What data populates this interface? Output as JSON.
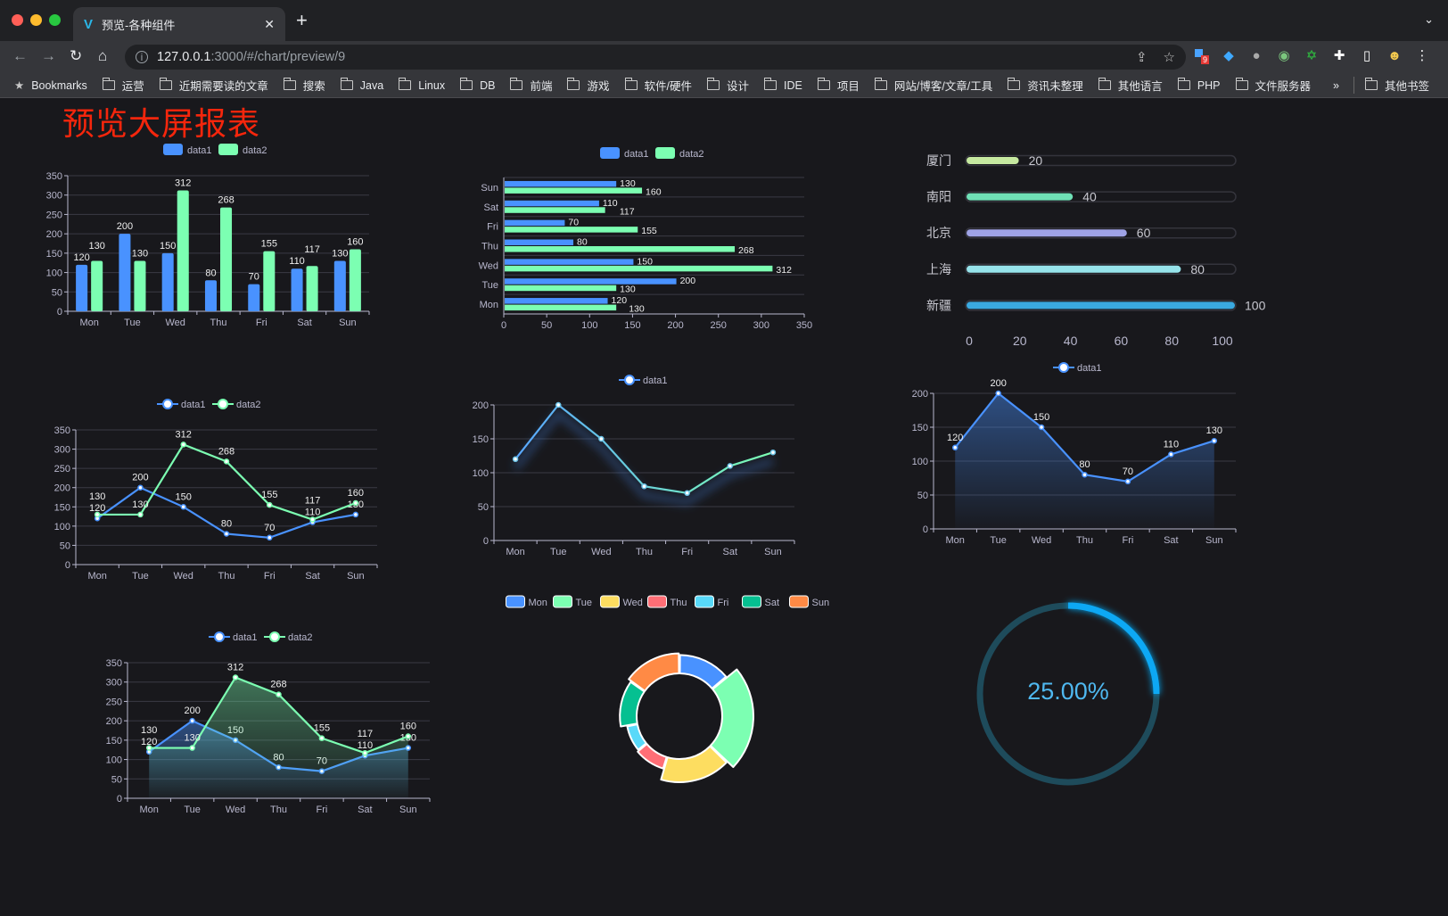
{
  "browser": {
    "tab_title": "预览-各种组件",
    "new_tab": "+",
    "url_host": "127.0.0.1",
    "url_rest": ":3000/#/chart/preview/9",
    "extension_badge": "9",
    "bookmarks": [
      "Bookmarks",
      "运营",
      "近期需要读的文章",
      "搜索",
      "Java",
      "Linux",
      "DB",
      "前端",
      "游戏",
      "软件/硬件",
      "设计",
      "IDE",
      "项目",
      "网站/博客/文章/工具",
      "资讯未整理",
      "其他语言",
      "PHP",
      "文件服务器"
    ],
    "bookmarks_overflow": "»",
    "other_bookmarks": "其他书签",
    "window_controls_colors": [
      "#ff5f57",
      "#febc2e",
      "#28c840"
    ]
  },
  "page": {
    "title": "预览大屏报表",
    "title_color": "#f5260c",
    "background": "#18181c"
  },
  "colors": {
    "data1": "#4992ff",
    "data2": "#7cffb2",
    "grid": "#3a3a44",
    "axis": "#b9b8ce"
  },
  "chart_data": [
    {
      "type": "bar",
      "categories": [
        "Mon",
        "Tue",
        "Wed",
        "Thu",
        "Fri",
        "Sat",
        "Sun"
      ],
      "series": [
        {
          "name": "data1",
          "values": [
            120,
            200,
            150,
            80,
            70,
            110,
            130
          ]
        },
        {
          "name": "data2",
          "values": [
            130,
            130,
            312,
            268,
            155,
            117,
            160
          ]
        }
      ],
      "yticks": [
        "0",
        "50",
        "100",
        "150",
        "200",
        "250",
        "300",
        "350"
      ],
      "ylim": [
        0,
        350
      ],
      "grid": true,
      "legend": "top",
      "data_labels": true
    },
    {
      "type": "bar",
      "orientation": "horizontal",
      "categories": [
        "Mon",
        "Tue",
        "Wed",
        "Thu",
        "Fri",
        "Sat",
        "Sun"
      ],
      "series": [
        {
          "name": "data1",
          "values": [
            120,
            200,
            150,
            80,
            70,
            110,
            130
          ]
        },
        {
          "name": "data2",
          "values": [
            130,
            130,
            312,
            268,
            155,
            117,
            160
          ]
        }
      ],
      "xticks": [
        "0",
        "50",
        "100",
        "150",
        "200",
        "250",
        "300",
        "350"
      ],
      "xlim": [
        0,
        350
      ],
      "grid": true,
      "legend": "top",
      "data_labels": true
    },
    {
      "type": "bar",
      "orientation": "horizontal",
      "style": "progress",
      "categories": [
        "厦门",
        "南阳",
        "北京",
        "上海",
        "新疆"
      ],
      "values": [
        20,
        40,
        60,
        80,
        100
      ],
      "colors": [
        "#c6e9a0",
        "#6fe0b6",
        "#9fa3e6",
        "#96e3ea",
        "#3aa9e0"
      ],
      "xticks": [
        "0",
        "20",
        "40",
        "60",
        "80",
        "100"
      ],
      "xlim": [
        0,
        100
      ],
      "grid": false
    },
    {
      "type": "line",
      "categories": [
        "Mon",
        "Tue",
        "Wed",
        "Thu",
        "Fri",
        "Sat",
        "Sun"
      ],
      "series": [
        {
          "name": "data1",
          "values": [
            120,
            200,
            150,
            80,
            70,
            110,
            130
          ]
        },
        {
          "name": "data2",
          "values": [
            130,
            130,
            312,
            268,
            155,
            117,
            160
          ]
        }
      ],
      "yticks": [
        "0",
        "50",
        "100",
        "150",
        "200",
        "250",
        "300",
        "350"
      ],
      "ylim": [
        0,
        350
      ],
      "grid": true,
      "legend": "top",
      "data_labels": true
    },
    {
      "type": "line",
      "categories": [
        "Mon",
        "Tue",
        "Wed",
        "Thu",
        "Fri",
        "Sat",
        "Sun"
      ],
      "series": [
        {
          "name": "data1",
          "values": [
            120,
            200,
            150,
            80,
            70,
            110,
            130
          ]
        }
      ],
      "yticks": [
        "0",
        "50",
        "100",
        "150",
        "200"
      ],
      "ylim": [
        0,
        200
      ],
      "grid": true,
      "legend": "top",
      "data_labels": false,
      "gradient_line": [
        "#58a6ff",
        "#7cffb2"
      ]
    },
    {
      "type": "area",
      "categories": [
        "Mon",
        "Tue",
        "Wed",
        "Thu",
        "Fri",
        "Sat",
        "Sun"
      ],
      "series": [
        {
          "name": "data1",
          "values": [
            120,
            200,
            150,
            80,
            70,
            110,
            130
          ]
        }
      ],
      "yticks": [
        "0",
        "50",
        "100",
        "150",
        "200"
      ],
      "ylim": [
        0,
        200
      ],
      "grid": true,
      "legend": "top",
      "data_labels": true
    },
    {
      "type": "area",
      "categories": [
        "Mon",
        "Tue",
        "Wed",
        "Thu",
        "Fri",
        "Sat",
        "Sun"
      ],
      "series": [
        {
          "name": "data1",
          "values": [
            120,
            200,
            150,
            80,
            70,
            110,
            130
          ]
        },
        {
          "name": "data2",
          "values": [
            130,
            130,
            312,
            268,
            155,
            117,
            160
          ]
        }
      ],
      "yticks": [
        "0",
        "50",
        "100",
        "150",
        "200",
        "250",
        "300",
        "350"
      ],
      "ylim": [
        0,
        350
      ],
      "grid": true,
      "legend": "top",
      "data_labels": true
    },
    {
      "type": "pie",
      "style": "rose-donut",
      "categories": [
        "Mon",
        "Tue",
        "Wed",
        "Thu",
        "Fri",
        "Sat",
        "Sun"
      ],
      "values": [
        120,
        200,
        150,
        80,
        70,
        110,
        130
      ],
      "colors": [
        "#4992ff",
        "#7cffb2",
        "#fddd60",
        "#ff6e76",
        "#58d9f9",
        "#05c091",
        "#ff8a45"
      ],
      "legend": "top"
    },
    {
      "type": "gauge",
      "value": 0.25,
      "label": "25.00%",
      "colors": {
        "progress": "#0fa8f4",
        "track": "#1e4b5b",
        "text": "#4fb8f0"
      }
    }
  ]
}
